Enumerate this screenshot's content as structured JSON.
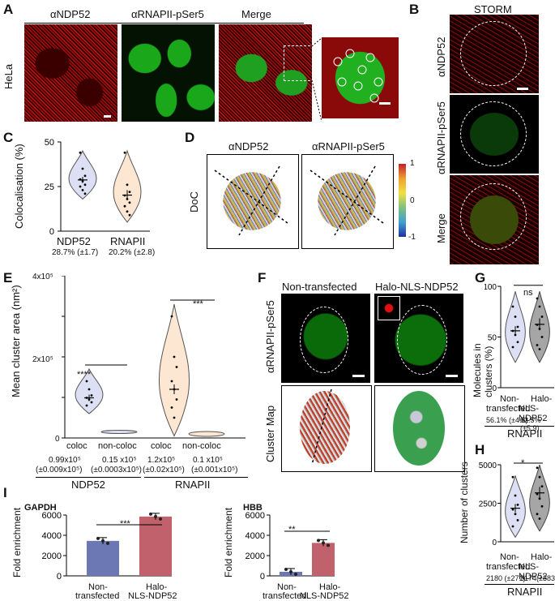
{
  "panels": {
    "A": "A",
    "B": "B",
    "C": "C",
    "D": "D",
    "E": "E",
    "F": "F",
    "G": "G",
    "H": "H",
    "I": "I"
  },
  "panelA": {
    "cell_line": "HeLa",
    "col1": "αNDP52",
    "col2": "αRNAPII-pSer5",
    "col3": "Merge"
  },
  "panelB": {
    "title": "STORM",
    "row1": "αNDP52",
    "row2": "αRNAPII-pSer5",
    "row3": "Merge"
  },
  "panelC": {
    "ylabel": "Colocalisation (%)",
    "yticks": [
      "50",
      "25",
      "0"
    ],
    "cat1": "NDP52",
    "cat2": "RNAPII",
    "sub1": "28.7% (±1.7)",
    "sub2": "20.2% (±2.8)"
  },
  "panelD": {
    "col1": "αNDP52",
    "col2": "αRNAPII-pSer5",
    "rowlabel": "DoC",
    "cb_top": "1",
    "cb_mid": "0",
    "cb_bot": "-1"
  },
  "panelE": {
    "ylabel": "Mean cluster area (nm²)",
    "ytop": "4x10⁵",
    "ymid": "2x10⁵",
    "yzero": "0",
    "sig1": "****",
    "sig2": "***",
    "tick1": "coloc",
    "tick2": "non-coloc",
    "tick3": "coloc",
    "tick4": "non-coloc",
    "v1": "0.99x10⁵",
    "v1e": "(±0.009x10⁵)",
    "v2": "0.15 x10⁵",
    "v2e": "(±0.0003x10⁵)",
    "v3": "1.2x10⁵",
    "v3e": "(±0.02x10⁵)",
    "v4": "0.1 x10⁵",
    "v4e": "(±0.001x10⁵)",
    "group1": "NDP52",
    "group2": "RNAPII"
  },
  "panelF": {
    "col1": "Non-transfected",
    "col2": "Halo-NLS-NDP52",
    "row1": "αRNAPII-pSer5",
    "row2": "Cluster Map"
  },
  "panelG": {
    "ylabel": "Molecules in clusters (%)",
    "yticks": [
      "100",
      "50",
      "0"
    ],
    "sig": "ns",
    "cat1a": "Non-",
    "cat1b": "transfected",
    "cat2a": "Halo-",
    "cat2b": "NLS-NDP52",
    "sub1": "56.1% (±4.6)",
    "sub2": "62.5% (±5.9)",
    "group": "RNAPII"
  },
  "panelH": {
    "ylabel": "Number of clusters",
    "yticks": [
      "5000",
      "2500",
      "0"
    ],
    "sig": "*",
    "cat1a": "Non-",
    "cat1b": "transfected",
    "cat2a": "Halo-",
    "cat2b": "NLS-NDP52",
    "sub1": "2180 (±271)",
    "sub2": "3174(±383)",
    "group": "RNAPII"
  },
  "panelI": {
    "ylabel": "Fold enrichment",
    "chart1_title": "GAPDH",
    "chart2_title": "HBB",
    "sig1": "***",
    "sig2": "**",
    "cat1a": "Non-",
    "cat1b": "transfected",
    "cat2a": "Halo-",
    "cat2b": "NLS-NDP52"
  },
  "colors": {
    "blue_bar": "#6b78b4",
    "red_bar": "#c0616b",
    "violin_blue": "#dde0f4",
    "violin_orange": "#fde6d2",
    "violin_grey": "#a6a6a6"
  },
  "chart_data": [
    {
      "type": "violin",
      "panel": "C",
      "categories": [
        "NDP52",
        "RNAPII"
      ],
      "values": [
        28.7,
        20.2
      ],
      "errors": [
        1.7,
        2.8
      ],
      "ylim": [
        0,
        50
      ],
      "ylabel": "Colocalisation (%)"
    },
    {
      "type": "violin",
      "panel": "E",
      "categories": [
        "coloc",
        "non-coloc",
        "coloc",
        "non-coloc"
      ],
      "groups": [
        "NDP52",
        "NDP52",
        "RNAPII",
        "RNAPII"
      ],
      "values": [
        99000,
        15000,
        120000,
        10000
      ],
      "ylim": [
        0,
        400000
      ],
      "ylabel": "Mean cluster area (nm²)"
    },
    {
      "type": "violin",
      "panel": "G",
      "categories": [
        "Non-transfected",
        "Halo-NLS-NDP52"
      ],
      "values": [
        56.1,
        62.5
      ],
      "errors": [
        4.6,
        5.9
      ],
      "ylim": [
        0,
        100
      ],
      "ylabel": "Molecules in clusters (%)"
    },
    {
      "type": "violin",
      "panel": "H",
      "categories": [
        "Non-transfected",
        "Halo-NLS-NDP52"
      ],
      "values": [
        2180,
        3174
      ],
      "errors": [
        271,
        383
      ],
      "ylim": [
        0,
        5000
      ],
      "ylabel": "Number of clusters"
    },
    {
      "type": "bar",
      "panel": "I",
      "title": "GAPDH",
      "categories": [
        "Non-transfected",
        "Halo-NLS-NDP52"
      ],
      "values": [
        3450,
        5850
      ],
      "ylim": [
        0,
        6000
      ],
      "yticks": [
        0,
        2000,
        4000,
        6000
      ],
      "ylabel": "Fold enrichment"
    },
    {
      "type": "bar",
      "panel": "I",
      "title": "HBB",
      "categories": [
        "Non-transfected",
        "Halo-NLS-NDP52"
      ],
      "values": [
        400,
        3250
      ],
      "ylim": [
        0,
        6000
      ],
      "yticks": [
        0,
        2000,
        4000,
        6000
      ],
      "ylabel": "Fold enrichment"
    }
  ]
}
